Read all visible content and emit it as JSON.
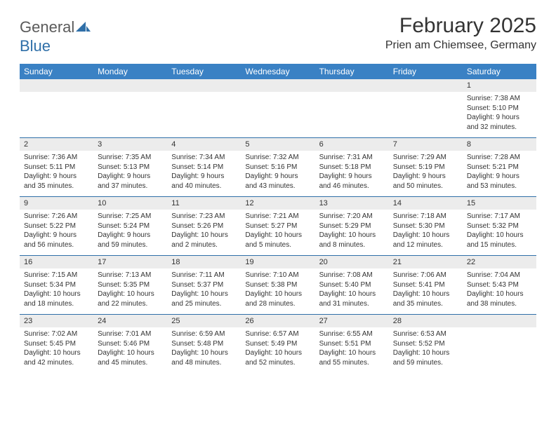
{
  "logo": {
    "general": "General",
    "blue": "Blue"
  },
  "title": "February 2025",
  "location": "Prien am Chiemsee, Germany",
  "colors": {
    "header_bg": "#3a81c4",
    "header_text": "#ffffff",
    "daynum_bg": "#ececec",
    "separator": "#2f6fa8",
    "logo_gray": "#5a5a5a",
    "logo_blue": "#2f6fa8"
  },
  "weekdays": [
    "Sunday",
    "Monday",
    "Tuesday",
    "Wednesday",
    "Thursday",
    "Friday",
    "Saturday"
  ],
  "weeks": [
    [
      {
        "n": "",
        "sr": "",
        "ss": "",
        "dl": ""
      },
      {
        "n": "",
        "sr": "",
        "ss": "",
        "dl": ""
      },
      {
        "n": "",
        "sr": "",
        "ss": "",
        "dl": ""
      },
      {
        "n": "",
        "sr": "",
        "ss": "",
        "dl": ""
      },
      {
        "n": "",
        "sr": "",
        "ss": "",
        "dl": ""
      },
      {
        "n": "",
        "sr": "",
        "ss": "",
        "dl": ""
      },
      {
        "n": "1",
        "sr": "Sunrise: 7:38 AM",
        "ss": "Sunset: 5:10 PM",
        "dl": "Daylight: 9 hours and 32 minutes."
      }
    ],
    [
      {
        "n": "2",
        "sr": "Sunrise: 7:36 AM",
        "ss": "Sunset: 5:11 PM",
        "dl": "Daylight: 9 hours and 35 minutes."
      },
      {
        "n": "3",
        "sr": "Sunrise: 7:35 AM",
        "ss": "Sunset: 5:13 PM",
        "dl": "Daylight: 9 hours and 37 minutes."
      },
      {
        "n": "4",
        "sr": "Sunrise: 7:34 AM",
        "ss": "Sunset: 5:14 PM",
        "dl": "Daylight: 9 hours and 40 minutes."
      },
      {
        "n": "5",
        "sr": "Sunrise: 7:32 AM",
        "ss": "Sunset: 5:16 PM",
        "dl": "Daylight: 9 hours and 43 minutes."
      },
      {
        "n": "6",
        "sr": "Sunrise: 7:31 AM",
        "ss": "Sunset: 5:18 PM",
        "dl": "Daylight: 9 hours and 46 minutes."
      },
      {
        "n": "7",
        "sr": "Sunrise: 7:29 AM",
        "ss": "Sunset: 5:19 PM",
        "dl": "Daylight: 9 hours and 50 minutes."
      },
      {
        "n": "8",
        "sr": "Sunrise: 7:28 AM",
        "ss": "Sunset: 5:21 PM",
        "dl": "Daylight: 9 hours and 53 minutes."
      }
    ],
    [
      {
        "n": "9",
        "sr": "Sunrise: 7:26 AM",
        "ss": "Sunset: 5:22 PM",
        "dl": "Daylight: 9 hours and 56 minutes."
      },
      {
        "n": "10",
        "sr": "Sunrise: 7:25 AM",
        "ss": "Sunset: 5:24 PM",
        "dl": "Daylight: 9 hours and 59 minutes."
      },
      {
        "n": "11",
        "sr": "Sunrise: 7:23 AM",
        "ss": "Sunset: 5:26 PM",
        "dl": "Daylight: 10 hours and 2 minutes."
      },
      {
        "n": "12",
        "sr": "Sunrise: 7:21 AM",
        "ss": "Sunset: 5:27 PM",
        "dl": "Daylight: 10 hours and 5 minutes."
      },
      {
        "n": "13",
        "sr": "Sunrise: 7:20 AM",
        "ss": "Sunset: 5:29 PM",
        "dl": "Daylight: 10 hours and 8 minutes."
      },
      {
        "n": "14",
        "sr": "Sunrise: 7:18 AM",
        "ss": "Sunset: 5:30 PM",
        "dl": "Daylight: 10 hours and 12 minutes."
      },
      {
        "n": "15",
        "sr": "Sunrise: 7:17 AM",
        "ss": "Sunset: 5:32 PM",
        "dl": "Daylight: 10 hours and 15 minutes."
      }
    ],
    [
      {
        "n": "16",
        "sr": "Sunrise: 7:15 AM",
        "ss": "Sunset: 5:34 PM",
        "dl": "Daylight: 10 hours and 18 minutes."
      },
      {
        "n": "17",
        "sr": "Sunrise: 7:13 AM",
        "ss": "Sunset: 5:35 PM",
        "dl": "Daylight: 10 hours and 22 minutes."
      },
      {
        "n": "18",
        "sr": "Sunrise: 7:11 AM",
        "ss": "Sunset: 5:37 PM",
        "dl": "Daylight: 10 hours and 25 minutes."
      },
      {
        "n": "19",
        "sr": "Sunrise: 7:10 AM",
        "ss": "Sunset: 5:38 PM",
        "dl": "Daylight: 10 hours and 28 minutes."
      },
      {
        "n": "20",
        "sr": "Sunrise: 7:08 AM",
        "ss": "Sunset: 5:40 PM",
        "dl": "Daylight: 10 hours and 31 minutes."
      },
      {
        "n": "21",
        "sr": "Sunrise: 7:06 AM",
        "ss": "Sunset: 5:41 PM",
        "dl": "Daylight: 10 hours and 35 minutes."
      },
      {
        "n": "22",
        "sr": "Sunrise: 7:04 AM",
        "ss": "Sunset: 5:43 PM",
        "dl": "Daylight: 10 hours and 38 minutes."
      }
    ],
    [
      {
        "n": "23",
        "sr": "Sunrise: 7:02 AM",
        "ss": "Sunset: 5:45 PM",
        "dl": "Daylight: 10 hours and 42 minutes."
      },
      {
        "n": "24",
        "sr": "Sunrise: 7:01 AM",
        "ss": "Sunset: 5:46 PM",
        "dl": "Daylight: 10 hours and 45 minutes."
      },
      {
        "n": "25",
        "sr": "Sunrise: 6:59 AM",
        "ss": "Sunset: 5:48 PM",
        "dl": "Daylight: 10 hours and 48 minutes."
      },
      {
        "n": "26",
        "sr": "Sunrise: 6:57 AM",
        "ss": "Sunset: 5:49 PM",
        "dl": "Daylight: 10 hours and 52 minutes."
      },
      {
        "n": "27",
        "sr": "Sunrise: 6:55 AM",
        "ss": "Sunset: 5:51 PM",
        "dl": "Daylight: 10 hours and 55 minutes."
      },
      {
        "n": "28",
        "sr": "Sunrise: 6:53 AM",
        "ss": "Sunset: 5:52 PM",
        "dl": "Daylight: 10 hours and 59 minutes."
      },
      {
        "n": "",
        "sr": "",
        "ss": "",
        "dl": ""
      }
    ]
  ]
}
